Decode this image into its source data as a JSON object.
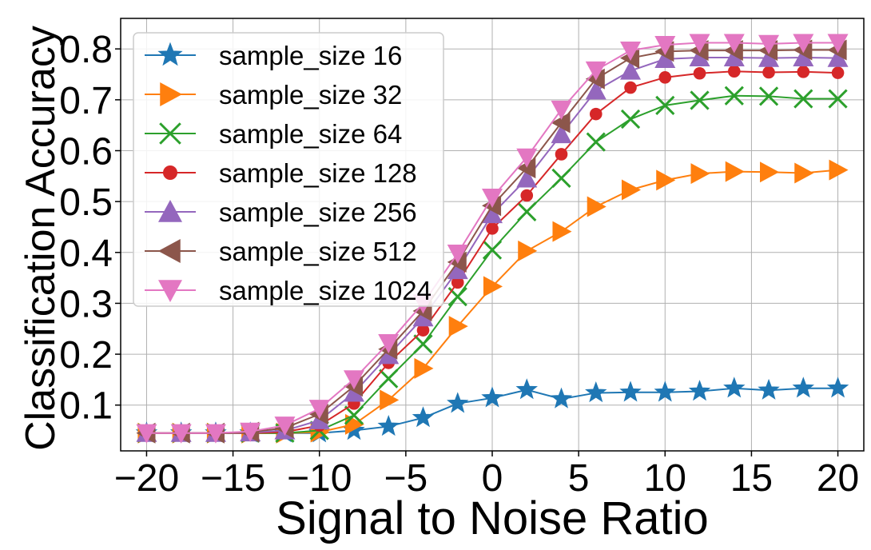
{
  "chart_data": {
    "type": "line",
    "xlabel": "Signal to Noise Ratio",
    "ylabel": "Classification Accuracy",
    "xlim": [
      -21.5,
      21.5
    ],
    "ylim": [
      0.01,
      0.86
    ],
    "xticks": [
      -20,
      -15,
      -10,
      -5,
      0,
      5,
      10,
      15,
      20
    ],
    "xtick_labels": [
      "−20",
      "−15",
      "−10",
      "−5",
      "0",
      "5",
      "10",
      "15",
      "20"
    ],
    "yticks": [
      0.1,
      0.2,
      0.3,
      0.4,
      0.5,
      0.6,
      0.7,
      0.8
    ],
    "ytick_labels": [
      "0.1",
      "0.2",
      "0.3",
      "0.4",
      "0.5",
      "0.6",
      "0.7",
      "0.8"
    ],
    "grid": true,
    "legend_position": "upper-left",
    "x": [
      -20,
      -18,
      -16,
      -14,
      -12,
      -10,
      -8,
      -6,
      -4,
      -2,
      0,
      2,
      4,
      6,
      8,
      10,
      12,
      14,
      16,
      18,
      20
    ],
    "series": [
      {
        "name": "sample_size 16",
        "color": "#1f77b4",
        "marker": "star",
        "values": [
          0.045,
          0.045,
          0.045,
          0.045,
          0.045,
          0.045,
          0.05,
          0.058,
          0.075,
          0.103,
          0.114,
          0.13,
          0.112,
          0.124,
          0.125,
          0.125,
          0.127,
          0.133,
          0.129,
          0.133,
          0.133
        ]
      },
      {
        "name": "sample_size 32",
        "color": "#ff7f0e",
        "marker": "triangle-right",
        "values": [
          0.045,
          0.045,
          0.045,
          0.045,
          0.045,
          0.047,
          0.062,
          0.11,
          0.172,
          0.255,
          0.333,
          0.403,
          0.441,
          0.49,
          0.523,
          0.542,
          0.555,
          0.559,
          0.558,
          0.556,
          0.562
        ]
      },
      {
        "name": "sample_size 64",
        "color": "#2ca02c",
        "marker": "x",
        "values": [
          0.045,
          0.045,
          0.045,
          0.045,
          0.045,
          0.05,
          0.08,
          0.152,
          0.22,
          0.313,
          0.405,
          0.48,
          0.546,
          0.617,
          0.662,
          0.689,
          0.699,
          0.708,
          0.707,
          0.702,
          0.702
        ]
      },
      {
        "name": "sample_size 128",
        "color": "#d62728",
        "marker": "circle",
        "values": [
          0.045,
          0.045,
          0.045,
          0.045,
          0.047,
          0.06,
          0.103,
          0.183,
          0.247,
          0.341,
          0.447,
          0.512,
          0.593,
          0.672,
          0.724,
          0.744,
          0.752,
          0.756,
          0.754,
          0.755,
          0.753
        ]
      },
      {
        "name": "sample_size 256",
        "color": "#9467bd",
        "marker": "triangle-up",
        "values": [
          0.045,
          0.045,
          0.045,
          0.046,
          0.05,
          0.07,
          0.124,
          0.198,
          0.272,
          0.365,
          0.475,
          0.545,
          0.632,
          0.718,
          0.757,
          0.78,
          0.783,
          0.783,
          0.782,
          0.783,
          0.782
        ]
      },
      {
        "name": "sample_size 512",
        "color": "#8c564b",
        "marker": "triangle-left",
        "values": [
          0.045,
          0.045,
          0.045,
          0.047,
          0.055,
          0.082,
          0.137,
          0.21,
          0.285,
          0.381,
          0.492,
          0.566,
          0.655,
          0.741,
          0.782,
          0.795,
          0.797,
          0.797,
          0.797,
          0.798,
          0.798
        ]
      },
      {
        "name": "sample_size 1024",
        "color": "#e377c2",
        "marker": "triangle-down",
        "values": [
          0.045,
          0.045,
          0.045,
          0.048,
          0.06,
          0.093,
          0.151,
          0.222,
          0.3,
          0.398,
          0.508,
          0.587,
          0.681,
          0.758,
          0.797,
          0.808,
          0.812,
          0.812,
          0.81,
          0.812,
          0.812
        ]
      }
    ]
  }
}
